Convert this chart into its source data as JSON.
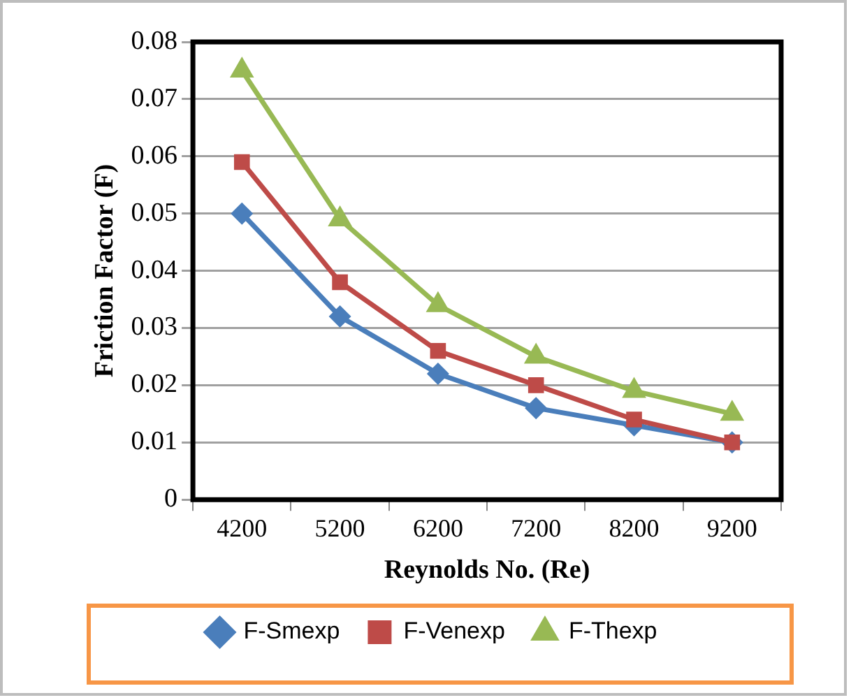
{
  "chart_data": {
    "type": "line",
    "xlabel": "Reynolds No. (Re)",
    "ylabel": "Friction Factor (F)",
    "categories": [
      "4200",
      "5200",
      "6200",
      "7200",
      "8200",
      "9200"
    ],
    "series": [
      {
        "name": "F-Smexp",
        "color": "#4a7ebb",
        "marker": "diamond",
        "values": [
          0.05,
          0.032,
          0.022,
          0.016,
          0.013,
          0.01
        ]
      },
      {
        "name": "F-Venexp",
        "color": "#be4b48",
        "marker": "square",
        "values": [
          0.059,
          0.038,
          0.026,
          0.02,
          0.014,
          0.01
        ]
      },
      {
        "name": "F-Thexp",
        "color": "#98b954",
        "marker": "triangle",
        "values": [
          0.075,
          0.049,
          0.034,
          0.025,
          0.019,
          0.015
        ]
      }
    ],
    "ylim": [
      0,
      0.08
    ],
    "yticks": [
      0,
      0.01,
      0.02,
      0.03,
      0.04,
      0.05,
      0.06,
      0.07,
      0.08
    ],
    "grid": "y",
    "legend": "bottom"
  }
}
